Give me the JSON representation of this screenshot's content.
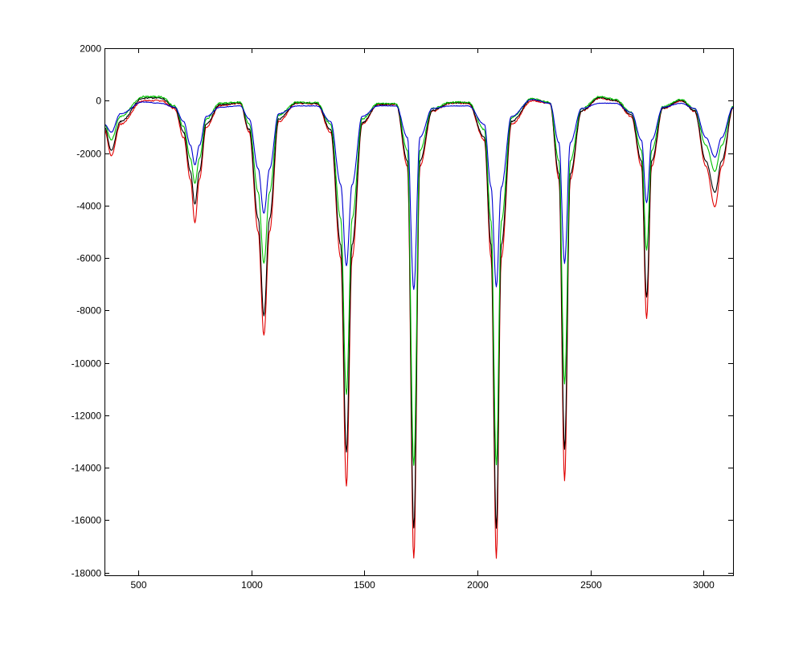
{
  "chart_data": {
    "type": "line",
    "title": "",
    "xlabel": "",
    "ylabel": "",
    "xlim": [
      350,
      3130
    ],
    "ylim": [
      -18100,
      2000
    ],
    "grid": false,
    "legend": "none",
    "x_ticks": [
      500,
      1000,
      1500,
      2000,
      2500,
      3000
    ],
    "y_ticks": [
      2000,
      0,
      -2000,
      -4000,
      -6000,
      -8000,
      -10000,
      -12000,
      -14000,
      -16000,
      -18000
    ],
    "x_tick_labels": [
      "500",
      "1000",
      "1500",
      "2000",
      "2500",
      "3000"
    ],
    "y_tick_labels": [
      "2000",
      "0",
      "-2000",
      "-4000",
      "-6000",
      "-8000",
      "-10000",
      "-12000",
      "-14000",
      "-16000",
      "-18000"
    ],
    "series": [
      {
        "color": "#e00000",
        "x": [
          350,
          380,
          420,
          520,
          600,
          660,
          700,
          730,
          750,
          770,
          800,
          860,
          950,
          990,
          1030,
          1055,
          1080,
          1120,
          1200,
          1290,
          1350,
          1395,
          1420,
          1445,
          1490,
          1560,
          1640,
          1690,
          1718,
          1745,
          1800,
          1880,
          1960,
          2030,
          2060,
          2083,
          2105,
          2150,
          2240,
          2320,
          2360,
          2385,
          2410,
          2460,
          2540,
          2610,
          2680,
          2725,
          2748,
          2770,
          2820,
          2900,
          2960,
          3010,
          3050,
          3080,
          3130
        ],
        "y": [
          -1100,
          -2100,
          -900,
          0,
          0,
          -300,
          -1400,
          -3000,
          -4650,
          -3000,
          -1000,
          -200,
          -100,
          -1200,
          -5000,
          -8950,
          -5000,
          -800,
          -100,
          -120,
          -1200,
          -6000,
          -14700,
          -6000,
          -900,
          -150,
          -150,
          -2500,
          -17450,
          -2500,
          -400,
          -100,
          -100,
          -1500,
          -6000,
          -17450,
          -6000,
          -900,
          0,
          -100,
          -3000,
          -14500,
          -3000,
          -400,
          100,
          0,
          -600,
          -2500,
          -8300,
          -2500,
          -300,
          0,
          -400,
          -2500,
          -4050,
          -2500,
          -300
        ]
      },
      {
        "color": "#000000",
        "x": [
          350,
          380,
          420,
          520,
          600,
          660,
          700,
          730,
          750,
          770,
          800,
          860,
          950,
          990,
          1030,
          1055,
          1080,
          1120,
          1200,
          1290,
          1350,
          1395,
          1420,
          1445,
          1490,
          1560,
          1640,
          1690,
          1718,
          1745,
          1800,
          1880,
          1960,
          2030,
          2060,
          2083,
          2105,
          2150,
          2240,
          2320,
          2360,
          2385,
          2410,
          2460,
          2540,
          2610,
          2680,
          2725,
          2748,
          2770,
          2820,
          2900,
          2960,
          3010,
          3050,
          3080,
          3130
        ],
        "y": [
          -1000,
          -1900,
          -800,
          100,
          100,
          -250,
          -1200,
          -2700,
          -3950,
          -2700,
          -900,
          -150,
          -80,
          -1100,
          -4500,
          -8200,
          -4500,
          -700,
          -80,
          -100,
          -1100,
          -5500,
          -13400,
          -5500,
          -850,
          -130,
          -130,
          -2300,
          -16300,
          -2300,
          -380,
          -80,
          -80,
          -1400,
          -5500,
          -16300,
          -5500,
          -800,
          50,
          -80,
          -2800,
          -13300,
          -2800,
          -380,
          120,
          20,
          -550,
          -2300,
          -7500,
          -2300,
          -280,
          20,
          -380,
          -2300,
          -3500,
          -2300,
          -280
        ]
      },
      {
        "color": "#00c000",
        "x": [
          350,
          380,
          420,
          520,
          600,
          660,
          700,
          730,
          750,
          770,
          800,
          860,
          950,
          990,
          1030,
          1055,
          1080,
          1120,
          1200,
          1290,
          1350,
          1395,
          1420,
          1445,
          1490,
          1560,
          1640,
          1690,
          1718,
          1745,
          1800,
          1880,
          1960,
          2030,
          2060,
          2083,
          2105,
          2150,
          2240,
          2320,
          2360,
          2385,
          2410,
          2460,
          2540,
          2610,
          2680,
          2725,
          2748,
          2770,
          2820,
          2900,
          2960,
          3010,
          3050,
          3080,
          3130
        ],
        "y": [
          -900,
          -1500,
          -600,
          150,
          150,
          -200,
          -1000,
          -2200,
          -3150,
          -2200,
          -700,
          -100,
          -60,
          -900,
          -3500,
          -6200,
          -3500,
          -550,
          -60,
          -80,
          -900,
          -4500,
          -11200,
          -4500,
          -700,
          -110,
          -110,
          -1900,
          -13900,
          -1900,
          -300,
          -60,
          -60,
          -1100,
          -4600,
          -13900,
          -4600,
          -650,
          80,
          -60,
          -2300,
          -10800,
          -2300,
          -300,
          150,
          50,
          -450,
          -1900,
          -5700,
          -1900,
          -220,
          40,
          -300,
          -1700,
          -2700,
          -1700,
          -220
        ]
      },
      {
        "color": "#0000d0",
        "x": [
          350,
          380,
          420,
          520,
          600,
          660,
          700,
          730,
          750,
          770,
          800,
          860,
          950,
          990,
          1030,
          1055,
          1080,
          1120,
          1200,
          1290,
          1350,
          1395,
          1420,
          1445,
          1490,
          1560,
          1640,
          1690,
          1718,
          1745,
          1800,
          1880,
          1960,
          2030,
          2060,
          2083,
          2105,
          2150,
          2240,
          2320,
          2360,
          2385,
          2410,
          2460,
          2540,
          2610,
          2680,
          2725,
          2748,
          2770,
          2820,
          2900,
          2960,
          3010,
          3050,
          3080,
          3130
        ],
        "y": [
          -900,
          -1200,
          -500,
          -50,
          -100,
          -250,
          -800,
          -1700,
          -2450,
          -1700,
          -600,
          -250,
          -200,
          -700,
          -2600,
          -4300,
          -2600,
          -500,
          -200,
          -200,
          -800,
          -3200,
          -6300,
          -3200,
          -600,
          -200,
          -200,
          -1400,
          -7200,
          -1400,
          -300,
          -200,
          -200,
          -900,
          -3300,
          -7100,
          -3300,
          -600,
          50,
          -100,
          -1600,
          -6200,
          -1600,
          -300,
          -100,
          -100,
          -450,
          -1500,
          -3900,
          -1500,
          -250,
          -100,
          -300,
          -1400,
          -2150,
          -1400,
          -250
        ]
      }
    ]
  }
}
